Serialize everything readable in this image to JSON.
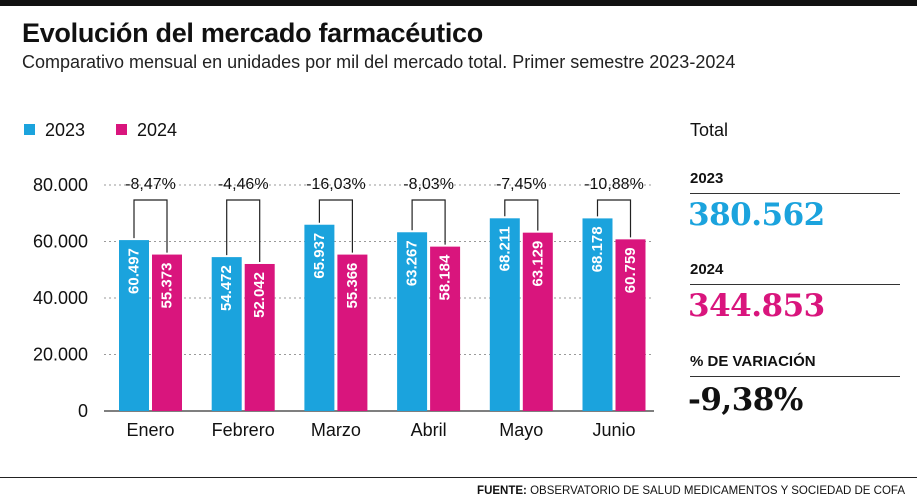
{
  "header": {
    "title": "Evolución del mercado farmacéutico",
    "subtitle": "Comparativo mensual en unidades por mil del mercado total. Primer semestre 2023-2024"
  },
  "colors": {
    "2023": "#1ba3dd",
    "2024": "#d9157d"
  },
  "chart_data": {
    "type": "bar",
    "categories": [
      "Enero",
      "Febrero",
      "Marzo",
      "Abril",
      "Mayo",
      "Junio"
    ],
    "series": [
      {
        "name": "2023",
        "values": [
          60497,
          54472,
          65937,
          63267,
          68211,
          68178
        ],
        "labels": [
          "60.497",
          "54.472",
          "65.937",
          "63.267",
          "68.211",
          "68.178"
        ]
      },
      {
        "name": "2024",
        "values": [
          55373,
          52042,
          55366,
          58184,
          63129,
          60759
        ],
        "labels": [
          "55.373",
          "52.042",
          "55.366",
          "58.184",
          "63.129",
          "60.759"
        ]
      }
    ],
    "variations": [
      "-8,47%",
      "-4,46%",
      "-16,03%",
      "-8,03%",
      "-7,45%",
      "-10,88%"
    ],
    "ylim": [
      0,
      80000
    ],
    "yticks": [
      0,
      20000,
      40000,
      60000,
      80000
    ],
    "ytick_labels": [
      "0",
      "20.000",
      "40.000",
      "60.000",
      "80.000"
    ],
    "grid": true,
    "legend_position": "top-left"
  },
  "summary": {
    "total_label": "Total",
    "y2023_label": "2023",
    "y2023_value": "380.562",
    "y2024_label": "2024",
    "y2024_value": "344.853",
    "variation_label": "% DE VARIACIÓN",
    "variation_value": "-9,38%"
  },
  "footer": {
    "source_label": "FUENTE:",
    "source_text": " OBSERVATORIO DE SALUD MEDICAMENTOS Y SOCIEDAD DE COFA"
  }
}
